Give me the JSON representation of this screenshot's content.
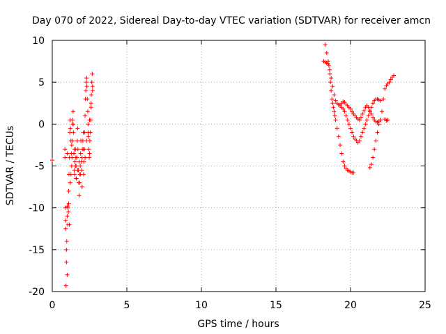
{
  "chart_data": {
    "type": "scatter",
    "title": "Day 070 of 2022, Sidereal Day-to-day VTEC variation (SDTVAR) for receiver amcn",
    "xlabel": "GPS time / hours",
    "ylabel": "SDTVAR / TECUs",
    "xlim": [
      0,
      25
    ],
    "ylim": [
      -20,
      10
    ],
    "xticks": [
      "0",
      "5",
      "10",
      "15",
      "20",
      "25"
    ],
    "yticks": [
      "-20",
      "-15",
      "-10",
      "-5",
      "0",
      "5",
      "10"
    ],
    "grid": true,
    "marker": "+",
    "color": "#ff0000",
    "series": [
      {
        "name": "SDTVAR",
        "x": [
          0.0,
          0.85,
          0.88,
          0.9,
          0.92,
          0.95,
          0.97,
          1.0,
          1.0,
          1.02,
          1.05,
          1.08,
          1.1,
          1.12,
          1.15,
          1.18,
          1.2,
          1.22,
          1.25,
          1.28,
          1.3,
          1.32,
          1.35,
          1.38,
          1.4,
          1.42,
          1.45,
          1.48,
          1.5,
          1.52,
          1.55,
          1.58,
          1.6,
          1.62,
          1.65,
          1.68,
          1.7,
          1.72,
          1.75,
          1.78,
          1.8,
          1.82,
          1.85,
          1.88,
          1.9,
          1.92,
          1.95,
          1.98,
          2.0,
          2.02,
          2.05,
          2.08,
          2.1,
          2.12,
          2.15,
          2.18,
          2.2,
          2.22,
          2.25,
          2.28,
          2.3,
          2.32,
          2.35,
          2.38,
          2.4,
          2.42,
          2.45,
          2.48,
          2.5,
          2.52,
          2.55,
          2.58,
          2.6,
          2.62,
          2.65,
          2.68,
          2.7,
          0.85,
          0.9,
          0.95,
          1.0,
          1.05,
          1.1,
          1.15,
          1.2,
          1.25,
          1.3,
          1.35,
          1.4,
          1.5,
          1.55,
          1.6,
          1.7,
          1.8,
          1.9,
          2.0,
          2.1,
          2.2,
          2.3,
          2.4,
          2.5,
          2.6,
          2.7,
          18.2,
          18.3,
          18.4,
          18.5,
          18.55,
          18.6,
          18.62,
          18.65,
          18.7,
          18.75,
          18.8,
          18.85,
          18.9,
          18.95,
          19.0,
          19.1,
          19.2,
          19.3,
          19.4,
          19.5,
          19.6,
          19.7,
          19.8,
          19.9,
          20.0,
          20.1,
          20.2,
          18.3,
          18.4,
          18.5,
          18.6,
          18.7,
          18.8,
          18.9,
          19.0,
          19.1,
          19.2,
          19.3,
          19.4,
          19.5,
          19.6,
          19.7,
          19.8,
          19.9,
          20.0,
          20.1,
          20.2,
          20.3,
          20.4,
          20.5,
          20.6,
          20.7,
          20.8,
          20.9,
          21.0,
          21.1,
          21.2,
          21.3,
          21.4,
          21.5,
          21.6,
          21.7,
          21.8,
          21.9,
          22.0,
          19.4,
          19.5,
          19.6,
          19.7,
          19.8,
          19.9,
          20.0,
          20.1,
          20.2,
          20.3,
          20.4,
          20.5,
          20.6,
          20.7,
          20.8,
          20.9,
          21.0,
          21.1,
          21.2,
          21.3,
          21.4,
          21.5,
          21.6,
          21.7,
          21.8,
          21.9,
          22.0,
          21.3,
          21.4,
          21.5,
          21.6,
          21.7,
          21.8,
          21.9,
          22.0,
          22.1,
          22.2,
          22.3,
          22.4,
          22.5,
          22.6,
          22.7,
          22.8,
          22.9,
          22.3,
          22.4,
          22.5
        ],
        "y": [
          -4.3,
          -3.0,
          -10.0,
          -12.5,
          -19.3,
          -16.5,
          -14.0,
          -11.0,
          -3.5,
          -9.8,
          -12.0,
          -10.5,
          -8.0,
          -6.0,
          -4.0,
          -1.0,
          0.5,
          -0.5,
          -2.0,
          -3.5,
          -5.0,
          -4.0,
          -2.0,
          0.0,
          1.5,
          -1.0,
          -3.5,
          -5.5,
          -6.0,
          -4.5,
          -3.0,
          -4.0,
          -5.0,
          -6.5,
          -4.0,
          -2.0,
          -0.5,
          -3.0,
          -5.5,
          -7.0,
          -8.5,
          -7.0,
          -6.0,
          -5.0,
          -3.5,
          -2.0,
          -4.5,
          -5.5,
          -4.0,
          -3.0,
          -2.0,
          -1.0,
          -3.0,
          -4.5,
          -3.0,
          -1.0,
          1.0,
          3.0,
          4.0,
          5.0,
          5.5,
          4.5,
          3.0,
          1.5,
          0.0,
          -1.5,
          -3.0,
          -4.0,
          -3.5,
          -2.0,
          -1.0,
          0.5,
          2.0,
          3.5,
          5.0,
          6.0,
          4.0,
          -4.0,
          -11.5,
          -15.0,
          -18.0,
          -10.0,
          -9.5,
          -12.0,
          -7.0,
          -6.0,
          -2.5,
          0.5,
          0.0,
          -3.0,
          -5.0,
          -6.5,
          -5.5,
          -4.5,
          -6.0,
          -7.5,
          -6.0,
          -4.0,
          -2.0,
          -1.0,
          0.5,
          2.5,
          4.5,
          7.5,
          7.4,
          7.3,
          7.2,
          7.0,
          6.5,
          6.0,
          5.0,
          4.0,
          3.0,
          2.5,
          2.0,
          1.5,
          1.0,
          0.5,
          -0.5,
          -1.5,
          -2.5,
          -3.5,
          -4.5,
          -5.0,
          -5.3,
          -5.5,
          -5.6,
          -5.7,
          -5.8,
          -5.8,
          9.5,
          8.5,
          7.5,
          6.5,
          5.5,
          4.5,
          3.5,
          2.8,
          2.5,
          2.3,
          2.2,
          2.0,
          1.8,
          1.5,
          1.0,
          0.5,
          0.0,
          -0.5,
          -1.0,
          -1.5,
          -1.8,
          -2.0,
          -2.2,
          -2.0,
          -1.5,
          -1.0,
          -0.5,
          0.0,
          0.5,
          1.0,
          1.5,
          2.0,
          2.5,
          2.8,
          3.0,
          3.0,
          2.9,
          2.8,
          2.5,
          2.7,
          2.6,
          2.4,
          2.2,
          2.0,
          1.8,
          1.5,
          1.2,
          1.0,
          0.8,
          0.6,
          0.5,
          0.8,
          1.2,
          1.6,
          2.0,
          2.2,
          2.0,
          1.6,
          1.2,
          0.8,
          0.5,
          0.3,
          0.2,
          0.3,
          0.5,
          -5.2,
          -4.8,
          -4.0,
          -3.0,
          -2.0,
          -1.0,
          0.0,
          0.5,
          1.5,
          3.0,
          4.2,
          4.6,
          4.8,
          5.0,
          5.3,
          5.6,
          5.8,
          0.6,
          0.4,
          0.5
        ]
      }
    ]
  }
}
